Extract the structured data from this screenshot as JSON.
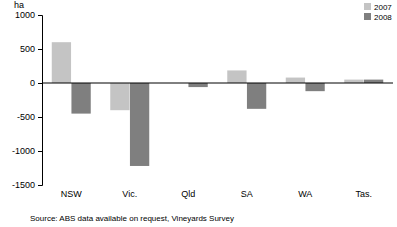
{
  "chart_data": {
    "type": "bar",
    "y_label": "ha",
    "source": "Source: ABS data available on request, Vineyards Survey",
    "categories": [
      "NSW",
      "Vic.",
      "Qld",
      "SA",
      "WA",
      "Tas."
    ],
    "series": [
      {
        "name": "2007",
        "color": "#c4c4c4",
        "values": [
          600,
          -400,
          0,
          185,
          80,
          50
        ]
      },
      {
        "name": "2008",
        "color": "#7f7f7f",
        "values": [
          -450,
          -1220,
          -60,
          -380,
          -120,
          50
        ]
      }
    ],
    "ylim": [
      -1500,
      1000
    ],
    "yticks": [
      -1500,
      -1000,
      -500,
      0,
      500,
      1000
    ],
    "grid": false,
    "legend": "top-right"
  }
}
